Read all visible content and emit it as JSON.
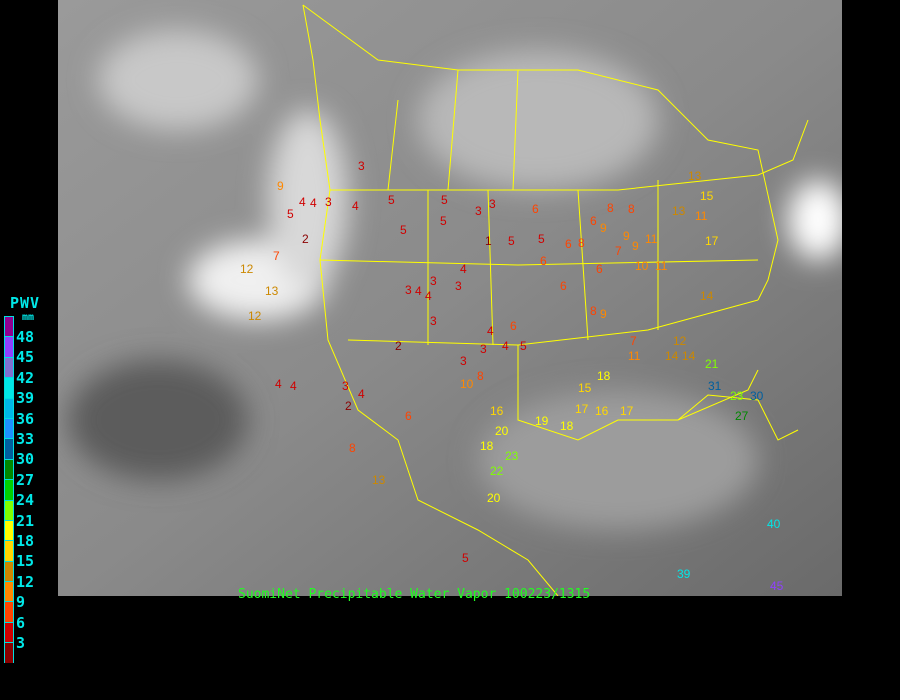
{
  "legend": {
    "title": "PWV",
    "unit": "mm",
    "ticks": [
      "48",
      "45",
      "42",
      "39",
      "36",
      "33",
      "30",
      "27",
      "24",
      "21",
      "18",
      "15",
      "12",
      "9",
      "6",
      "3"
    ],
    "colors": [
      "#900090",
      "#9040ff",
      "#8070d0",
      "#00e8e8",
      "#00b8e8",
      "#1e90ff",
      "#005f9f",
      "#008800",
      "#00d000",
      "#80ff00",
      "#ffff00",
      "#ffd700",
      "#cc8800",
      "#ff8800",
      "#ff4400",
      "#d00000",
      "#8b0000"
    ]
  },
  "caption": "SuomiNet Precipitable Water Vapor 100223/1315",
  "colors": {
    "borders": "#ffff00",
    "background": "#000000",
    "caption": "#20ff20"
  },
  "stations": [
    "3",
    "9",
    "5",
    "4",
    "3",
    "4",
    "5",
    "2",
    "7",
    "12",
    "13",
    "12",
    "5",
    "3",
    "5",
    "4",
    "4",
    "3",
    "3",
    "1",
    "5",
    "5",
    "5",
    "6",
    "6",
    "8",
    "6",
    "6",
    "6",
    "8",
    "9",
    "9",
    "8",
    "9",
    "11",
    "13",
    "11",
    "13",
    "15",
    "6",
    "7",
    "10",
    "11",
    "17",
    "3",
    "4",
    "3",
    "3",
    "2",
    "3",
    "4",
    "4",
    "6",
    "5",
    "3",
    "4",
    "9",
    "8",
    "7",
    "14",
    "11",
    "12",
    "14",
    "31",
    "21",
    "23",
    "27",
    "30",
    "3",
    "4",
    "2",
    "4",
    "4",
    "6",
    "8",
    "10",
    "16",
    "18",
    "20",
    "22",
    "23",
    "20",
    "5",
    "13",
    "8",
    "19",
    "18",
    "17",
    "16",
    "17",
    "15",
    "18",
    "14",
    "40",
    "45",
    "39"
  ]
}
